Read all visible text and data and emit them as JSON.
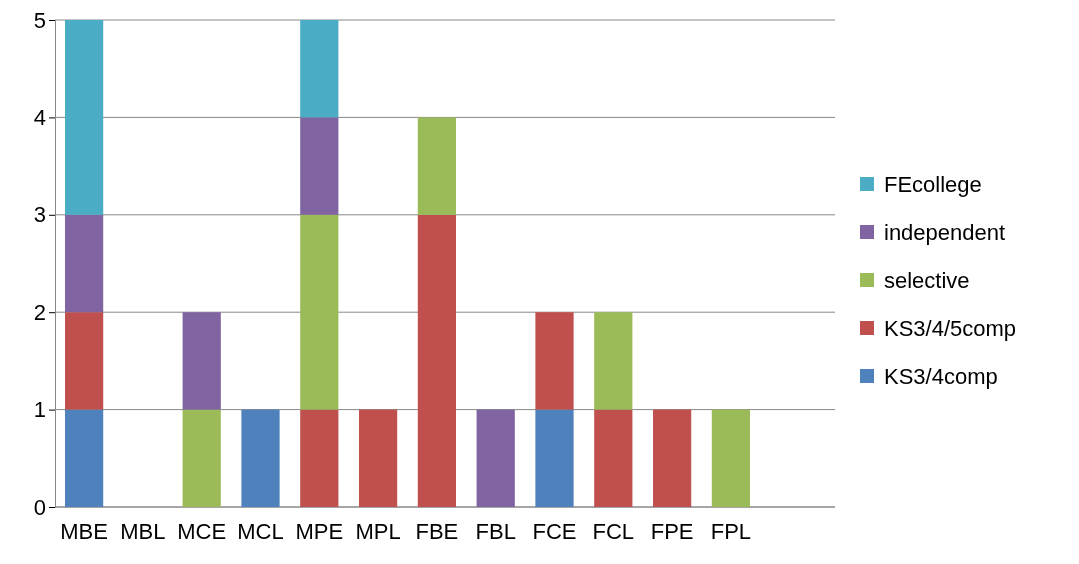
{
  "chart_data": {
    "type": "bar",
    "stacked": true,
    "categories": [
      "MBE",
      "MBL",
      "MCE",
      "MCL",
      "MPE",
      "MPL",
      "FBE",
      "FBL",
      "FCE",
      "FCL",
      "FPE",
      "FPL"
    ],
    "series": [
      {
        "name": "KS3/4comp",
        "color": "#4f81bd",
        "values": [
          1,
          0,
          0,
          1,
          0,
          0,
          0,
          0,
          1,
          0,
          0,
          0
        ]
      },
      {
        "name": "KS3/4/5comp",
        "color": "#c0504d",
        "values": [
          1,
          0,
          0,
          0,
          1,
          1,
          3,
          0,
          1,
          1,
          1,
          0
        ]
      },
      {
        "name": "selective",
        "color": "#9bbb59",
        "values": [
          0,
          0,
          1,
          0,
          2,
          0,
          1,
          0,
          0,
          1,
          0,
          1
        ]
      },
      {
        "name": "independent",
        "color": "#8064a2",
        "values": [
          1,
          0,
          1,
          0,
          1,
          0,
          0,
          1,
          0,
          0,
          0,
          0
        ]
      },
      {
        "name": "FEcollege",
        "color": "#4bacc6",
        "values": [
          2,
          0,
          0,
          0,
          1,
          0,
          0,
          0,
          0,
          0,
          0,
          0
        ]
      }
    ],
    "ylim": [
      0,
      5
    ],
    "yticks": [
      0,
      1,
      2,
      3,
      4,
      5
    ],
    "grid": "y",
    "legend": "right"
  }
}
